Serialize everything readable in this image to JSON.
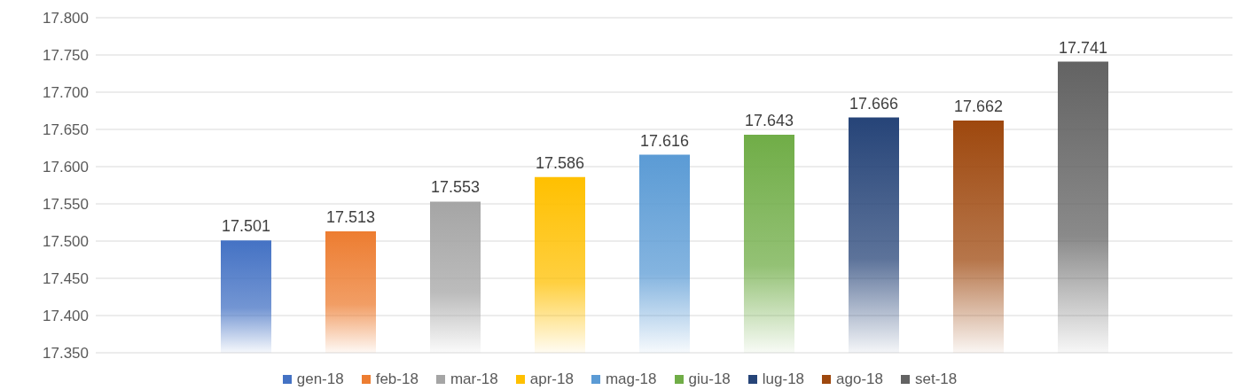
{
  "chart_data": {
    "type": "bar",
    "categories": [
      null
    ],
    "series": [
      {
        "name": "gen-18",
        "color": "#4472c4",
        "values": [
          17.501
        ],
        "value_labels": [
          "17.501"
        ]
      },
      {
        "name": "feb-18",
        "color": "#ed7d31",
        "values": [
          17.513
        ],
        "value_labels": [
          "17.513"
        ]
      },
      {
        "name": "mar-18",
        "color": "#a5a5a5",
        "values": [
          17.553
        ],
        "value_labels": [
          "17.553"
        ]
      },
      {
        "name": "apr-18",
        "color": "#ffc000",
        "values": [
          17.586
        ],
        "value_labels": [
          "17.586"
        ]
      },
      {
        "name": "mag-18",
        "color": "#5b9bd5",
        "values": [
          17.616
        ],
        "value_labels": [
          "17.616"
        ]
      },
      {
        "name": "giu-18",
        "color": "#70ad47",
        "values": [
          17.643
        ],
        "value_labels": [
          "17.643"
        ]
      },
      {
        "name": "lug-18",
        "color": "#264478",
        "values": [
          17.666
        ],
        "value_labels": [
          "17.666"
        ]
      },
      {
        "name": "ago-18",
        "color": "#9e480e",
        "values": [
          17.662
        ],
        "value_labels": [
          "17.662"
        ]
      },
      {
        "name": "set-18",
        "color": "#636363",
        "values": [
          17.741
        ],
        "value_labels": [
          "17.741"
        ]
      }
    ],
    "ylim": [
      17.35,
      17.8
    ],
    "yticks": [
      {
        "value": 17.35,
        "label": "17.350"
      },
      {
        "value": 17.4,
        "label": "17.400"
      },
      {
        "value": 17.45,
        "label": "17.450"
      },
      {
        "value": 17.5,
        "label": "17.500"
      },
      {
        "value": 17.55,
        "label": "17.550"
      },
      {
        "value": 17.6,
        "label": "17.600"
      },
      {
        "value": 17.65,
        "label": "17.650"
      },
      {
        "value": 17.7,
        "label": "17.700"
      },
      {
        "value": 17.75,
        "label": "17.750"
      },
      {
        "value": 17.8,
        "label": "17.800"
      }
    ],
    "grid": "y",
    "legend": "bottom"
  }
}
